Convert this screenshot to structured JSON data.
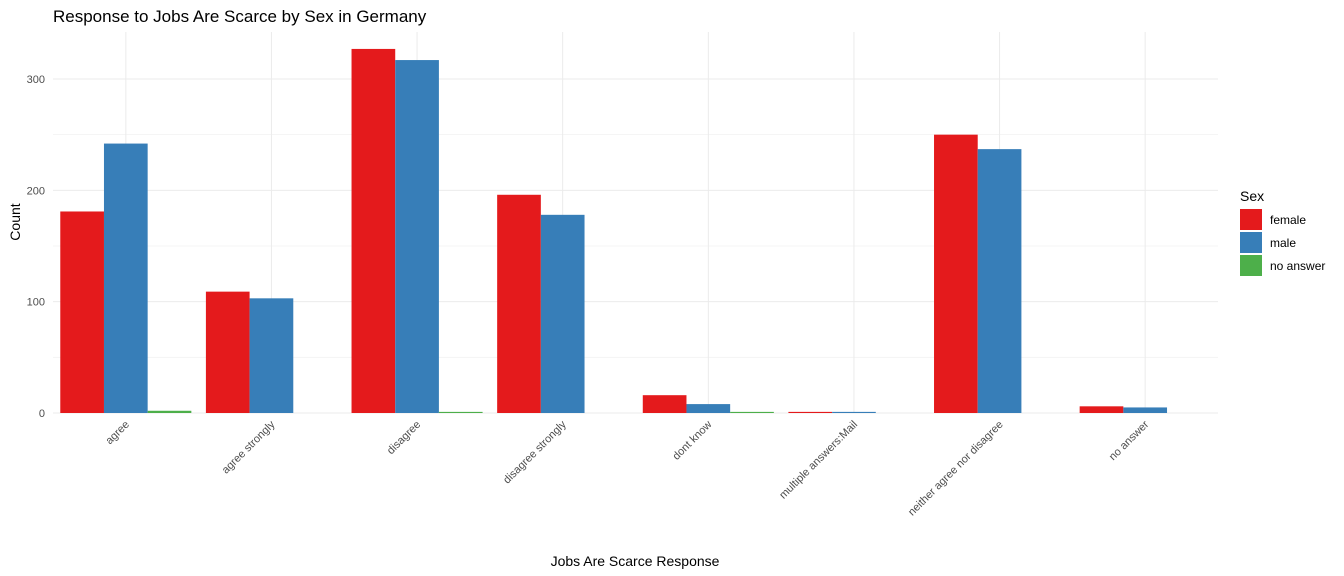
{
  "chart_data": {
    "type": "bar",
    "title": "Response to Jobs Are Scarce by Sex in Germany",
    "xlabel": "Jobs Are Scarce Response",
    "ylabel": "Count",
    "categories": [
      "agree",
      "agree strongly",
      "disagree",
      "disagree strongly",
      "dont know",
      "multiple answers:Mail",
      "neither agree nor disagree",
      "no answer"
    ],
    "series": [
      {
        "name": "female",
        "color": "#E41A1C",
        "values": [
          181,
          109,
          327,
          196,
          16,
          1,
          250,
          6
        ]
      },
      {
        "name": "male",
        "color": "#377EB8",
        "values": [
          242,
          103,
          317,
          178,
          8,
          1,
          237,
          5
        ]
      },
      {
        "name": "no answer",
        "color": "#4DAF4A",
        "values": [
          2,
          0,
          1,
          0,
          1,
          0,
          0,
          0
        ]
      }
    ],
    "ylim": [
      0,
      344
    ],
    "yticks": [
      0,
      100,
      200,
      300
    ],
    "grid": true,
    "legend": {
      "title": "Sex",
      "position": "right"
    }
  }
}
